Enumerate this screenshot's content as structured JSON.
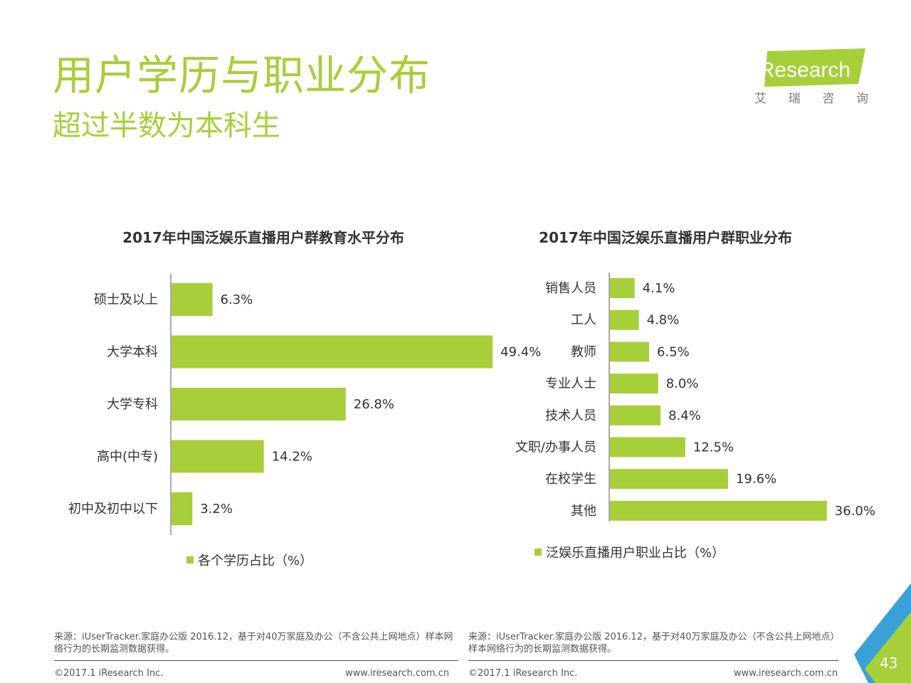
{
  "header": {
    "title": "用户学历与职业分布",
    "subtitle": "超过半数为本科生"
  },
  "logo": {
    "name": "iResearch",
    "chinese": [
      "艾",
      "瑞",
      "咨",
      "询"
    ],
    "accent_color": "#a6cf3a"
  },
  "chart_data": [
    {
      "type": "bar",
      "orientation": "horizontal",
      "title": "2017年中国泛娱乐直播用户群教育水平分布",
      "categories": [
        "硕士及以上",
        "大学本科",
        "大学专科",
        "高中(中专)",
        "初中及初中以下"
      ],
      "series": [
        {
          "name": "各个学历占比（%）",
          "values": [
            6.3,
            49.4,
            26.8,
            14.2,
            3.2
          ]
        }
      ],
      "value_labels": [
        "6.3%",
        "49.4%",
        "26.8%",
        "14.2%",
        "3.2%"
      ],
      "xlim": [
        0,
        60
      ],
      "legend": "bottom",
      "grid": false,
      "bar_color": "#a6cf3a"
    },
    {
      "type": "bar",
      "orientation": "horizontal",
      "title": "2017年中国泛娱乐直播用户群职业分布",
      "categories": [
        "销售人员",
        "工人",
        "教师",
        "专业人士",
        "技术人员",
        "文职/办事人员",
        "在校学生",
        "其他"
      ],
      "series": [
        {
          "name": "泛娱乐直播用户职业占比（%）",
          "values": [
            4.1,
            4.8,
            6.5,
            8.0,
            8.4,
            12.5,
            19.6,
            36.0
          ]
        }
      ],
      "value_labels": [
        "4.1%",
        "4.8%",
        "6.5%",
        "8.0%",
        "8.4%",
        "12.5%",
        "19.6%",
        "36.0%"
      ],
      "xlim": [
        0,
        45
      ],
      "legend": "bottom",
      "grid": false,
      "bar_color": "#a6cf3a"
    }
  ],
  "footer": {
    "left": {
      "source": "来源：iUserTracker.家庭办公版 2016.12，基于对40万家庭及办公（不含公共上网地点）样本网络行为的长期监测数据获得。",
      "copyright": "©2017.1 iResearch Inc.",
      "url": "www.iresearch.com.cn"
    },
    "right": {
      "source": "来源：iUserTracker.家庭办公版 2016.12，基于对40万家庭及办公（不含公共上网地点）样本网络行为的长期监测数据获得。",
      "copyright": "©2017.1 iResearch Inc.",
      "url": "www.iresearch.com.cn"
    },
    "page_number": "43"
  }
}
